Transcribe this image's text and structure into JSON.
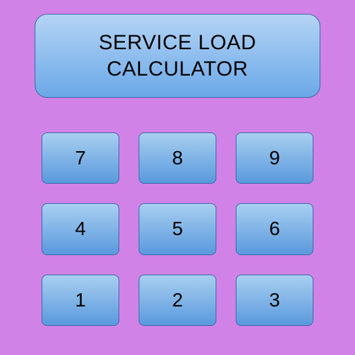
{
  "calculator": {
    "background_color": "#d082e6",
    "display": {
      "line1": "SERVICE LOAD",
      "line2": "CALCULATOR",
      "font_size": 30,
      "font_weight": "400",
      "text_color": "#000000",
      "gradient_top": "#b4d4f4",
      "gradient_bottom": "#6ba8e8",
      "border_color": "#3a6aa8"
    },
    "keys": {
      "font_size": 28,
      "text_color": "#000000",
      "gradient_top": "#a8cff0",
      "gradient_bottom": "#5a99dd",
      "border_color": "#3a6aa8",
      "values": [
        "7",
        "8",
        "9",
        "4",
        "5",
        "6",
        "1",
        "2",
        "3"
      ]
    }
  }
}
